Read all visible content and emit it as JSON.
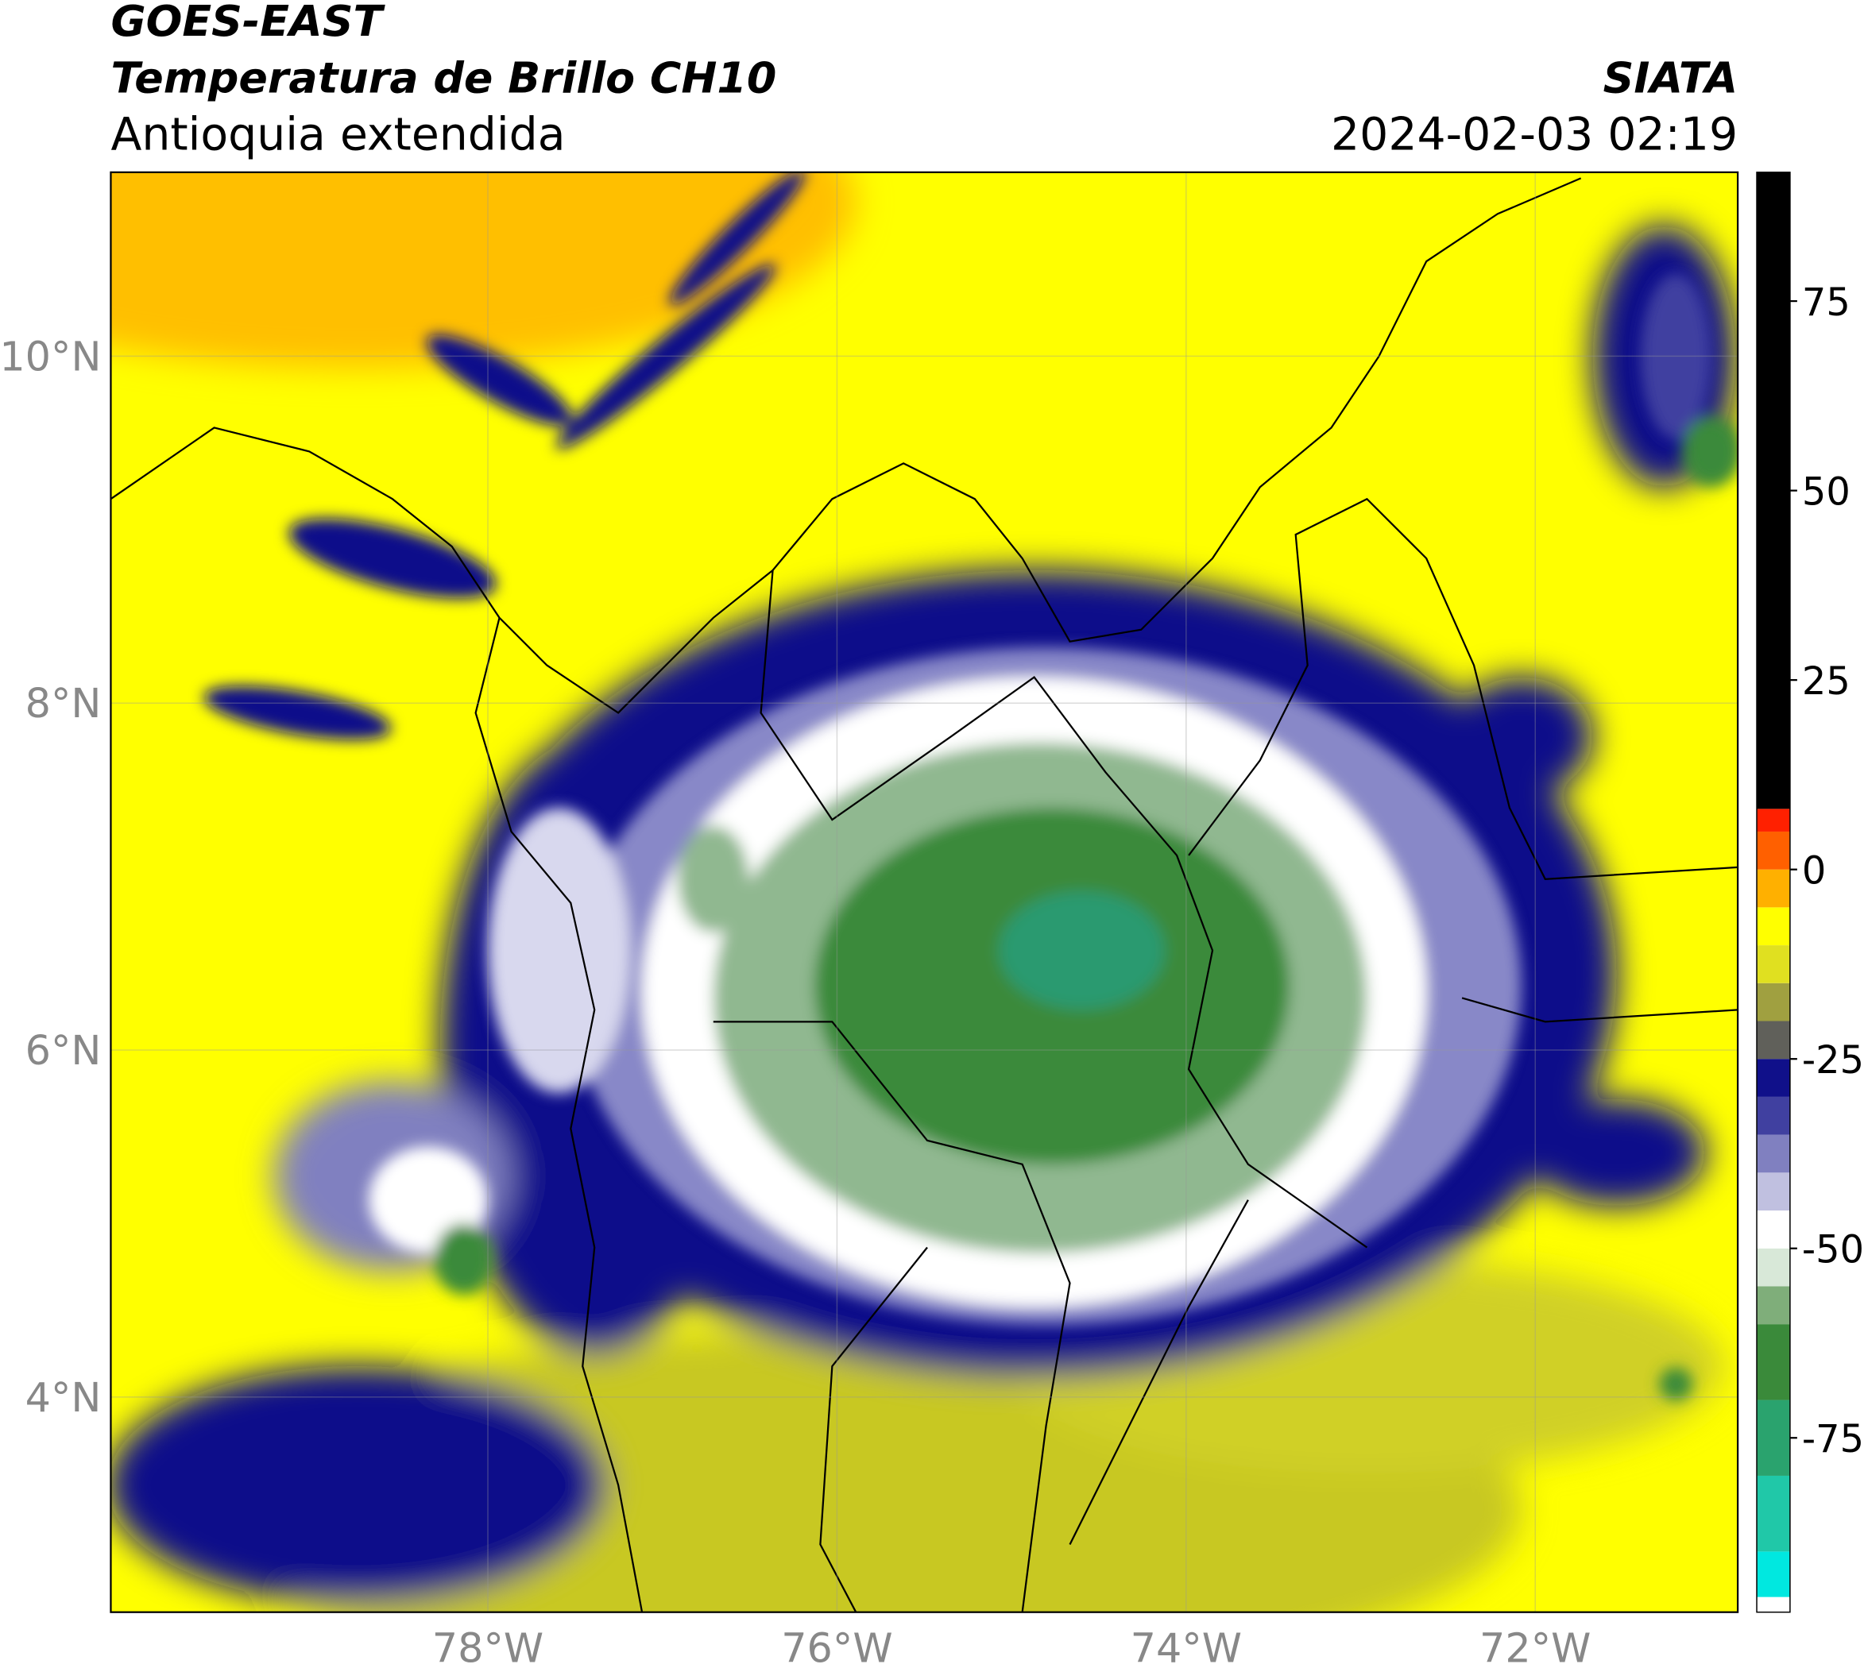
{
  "header": {
    "title": "GOES-EAST",
    "subtitle": "Temperatura de Brillo CH10",
    "region": "Antioquia extendida",
    "source": "SIATA",
    "datetime": "2024-02-03 02:19"
  },
  "map": {
    "xlim": [
      -80.16,
      -70.84
    ],
    "ylim": [
      2.76,
      11.06
    ],
    "xticks": [
      {
        "value": -78,
        "label": "78°W"
      },
      {
        "value": -76,
        "label": "76°W"
      },
      {
        "value": -74,
        "label": "74°W"
      },
      {
        "value": -72,
        "label": "72°W"
      }
    ],
    "yticks": [
      {
        "value": 4,
        "label": "4°N"
      },
      {
        "value": 6,
        "label": "6°N"
      },
      {
        "value": 8,
        "label": "8°N"
      },
      {
        "value": 10,
        "label": "10°N"
      }
    ],
    "grid": true
  },
  "colorbar": {
    "lim": [
      -98,
      92
    ],
    "ticks": [
      -75,
      -50,
      -25,
      0,
      25,
      50,
      75
    ],
    "bands": [
      {
        "from": -98,
        "to": -96,
        "color": "#ffffff"
      },
      {
        "from": -96,
        "to": -90,
        "color": "#00e8e0"
      },
      {
        "from": -90,
        "to": -80,
        "color": "#20c8a8"
      },
      {
        "from": -80,
        "to": -70,
        "color": "#2aa36e"
      },
      {
        "from": -70,
        "to": -60,
        "color": "#3a8a3a"
      },
      {
        "from": -60,
        "to": -55,
        "color": "#7fae7a"
      },
      {
        "from": -55,
        "to": -50,
        "color": "#d8e8d8"
      },
      {
        "from": -50,
        "to": -45,
        "color": "#ffffff"
      },
      {
        "from": -45,
        "to": -40,
        "color": "#c0c0e0"
      },
      {
        "from": -40,
        "to": -35,
        "color": "#8080c0"
      },
      {
        "from": -35,
        "to": -30,
        "color": "#4040a0"
      },
      {
        "from": -30,
        "to": -25,
        "color": "#10108a"
      },
      {
        "from": -25,
        "to": -20,
        "color": "#60605a"
      },
      {
        "from": -20,
        "to": -15,
        "color": "#a0a040"
      },
      {
        "from": -15,
        "to": -10,
        "color": "#e0e020"
      },
      {
        "from": -10,
        "to": -5,
        "color": "#ffff00"
      },
      {
        "from": -5,
        "to": 0,
        "color": "#ffb000"
      },
      {
        "from": 0,
        "to": 5,
        "color": "#ff6000"
      },
      {
        "from": 5,
        "to": 8,
        "color": "#ff2000"
      },
      {
        "from": 8,
        "to": 92,
        "color": "#000000"
      }
    ]
  }
}
